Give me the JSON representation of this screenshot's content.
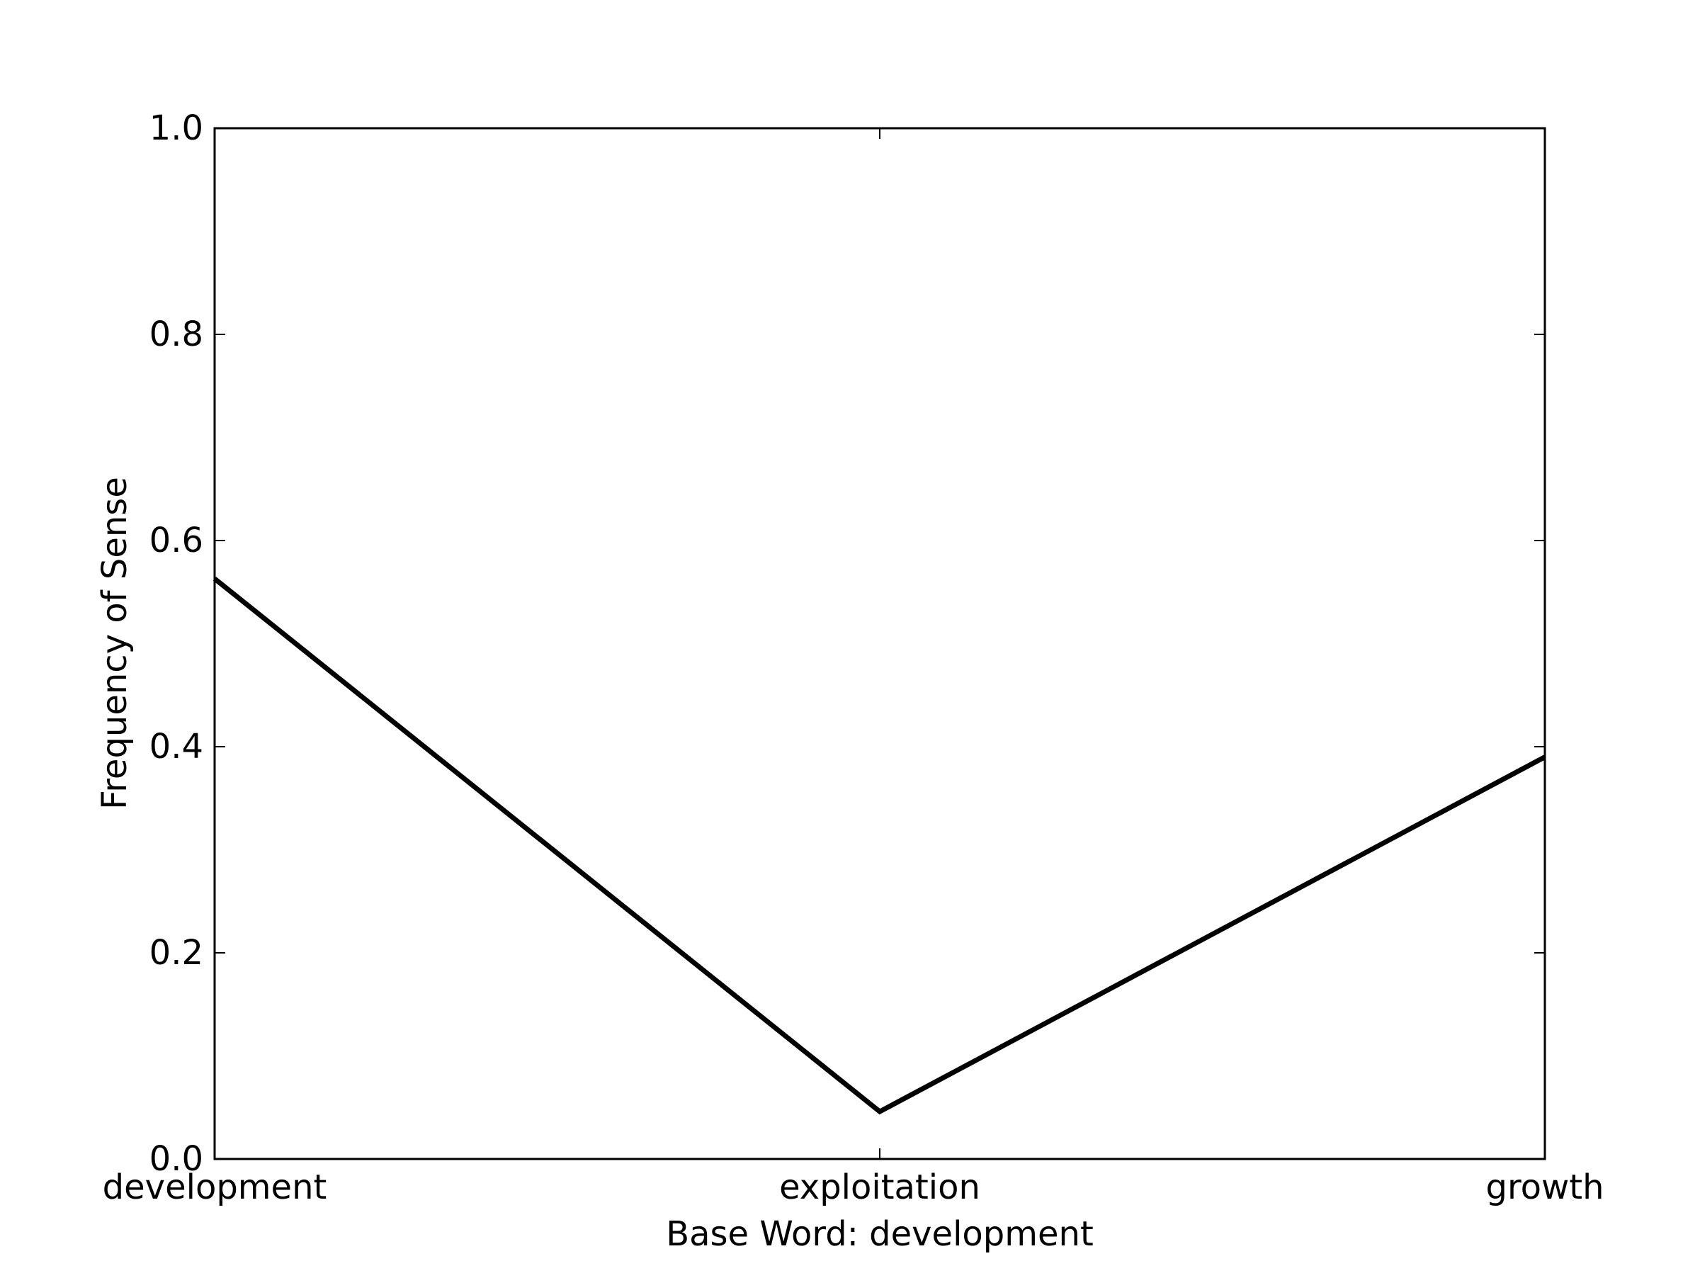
{
  "chart_data": {
    "type": "line",
    "title": "",
    "xlabel": "Base Word: development",
    "ylabel": "Frequency of Sense",
    "categories": [
      "development",
      "exploitation",
      "growth"
    ],
    "series": [
      {
        "values": [
          0.563,
          0.046,
          0.39
        ],
        "color": "#000000"
      }
    ],
    "ylim": [
      0,
      1.0
    ],
    "yticks": [
      "0.0",
      "0.2",
      "0.4",
      "0.6",
      "0.8",
      "1.0"
    ],
    "grid": false,
    "legend": "none"
  }
}
